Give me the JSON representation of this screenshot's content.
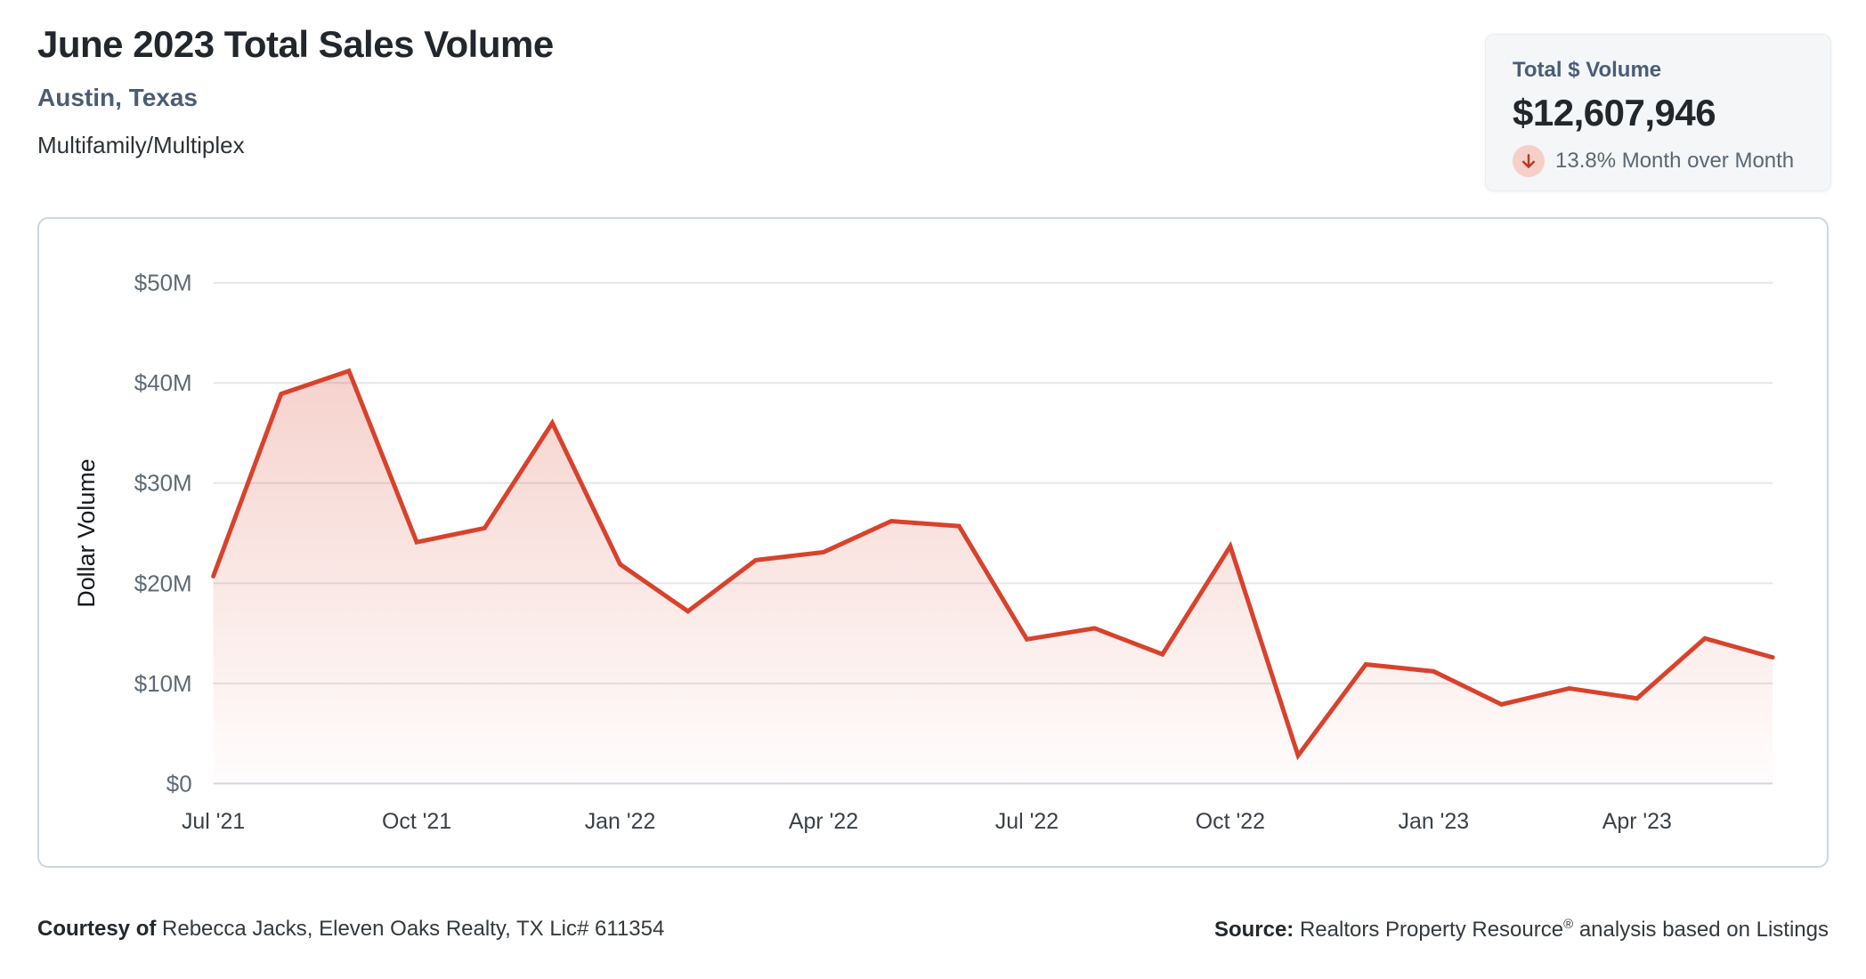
{
  "header": {
    "title": "June 2023 Total Sales Volume",
    "subtitle": "Austin, Texas",
    "property_type": "Multifamily/Multiplex"
  },
  "stat_card": {
    "label": "Total $ Volume",
    "value": "$12,607,946",
    "change_text": "13.8% Month over Month",
    "direction": "down",
    "badge_bg": "#f6cfc7",
    "arrow_color": "#b43b2b"
  },
  "chart_data": {
    "type": "area",
    "title": "June 2023 Total Sales Volume",
    "ylabel": "Dollar Volume",
    "xlabel": "",
    "x_labels": [
      "Jul '21",
      "Aug '21",
      "Sep '21",
      "Oct '21",
      "Nov '21",
      "Dec '21",
      "Jan '22",
      "Feb '22",
      "Mar '22",
      "Apr '22",
      "May '22",
      "Jun '22",
      "Jul '22",
      "Aug '22",
      "Sep '22",
      "Oct '22",
      "Nov '22",
      "Dec '22",
      "Jan '23",
      "Feb '23",
      "Mar '23",
      "Apr '23",
      "May '23",
      "Jun '23"
    ],
    "values_musd": [
      20.7,
      38.9,
      41.2,
      24.1,
      25.5,
      36.0,
      21.9,
      17.2,
      22.3,
      23.1,
      26.2,
      25.7,
      14.4,
      15.5,
      12.9,
      23.7,
      2.8,
      11.9,
      11.2,
      7.9,
      9.5,
      8.5,
      14.5,
      12.6
    ],
    "last_point_exact": "$12,607,946",
    "x_tick_labels": [
      "Jul '21",
      "Oct '21",
      "Jan '22",
      "Apr '22",
      "Jul '22",
      "Oct '22",
      "Jan '23",
      "Apr '23"
    ],
    "y_tick_labels": [
      "$0",
      "$10M",
      "$20M",
      "$30M",
      "$40M",
      "$50M"
    ],
    "y_tick_values": [
      0,
      10,
      20,
      30,
      40,
      50
    ],
    "ylim": [
      0,
      50
    ],
    "grid": true,
    "legend": false,
    "line_color": "#d8422c",
    "fill_color_top": "rgba(216,66,44,0.24)",
    "fill_color_bottom": "rgba(216,66,44,0.01)",
    "grid_color": "#e5e6e8",
    "zero_line_color": "#d6d8da"
  },
  "footer": {
    "courtesy_label": "Courtesy of",
    "courtesy_text": "Rebecca Jacks, Eleven Oaks Realty, TX Lic# 611354",
    "source_label": "Source:",
    "source_text_pre": "Realtors Property Resource",
    "source_reg_mark": "®",
    "source_text_post": "analysis based on Listings"
  }
}
